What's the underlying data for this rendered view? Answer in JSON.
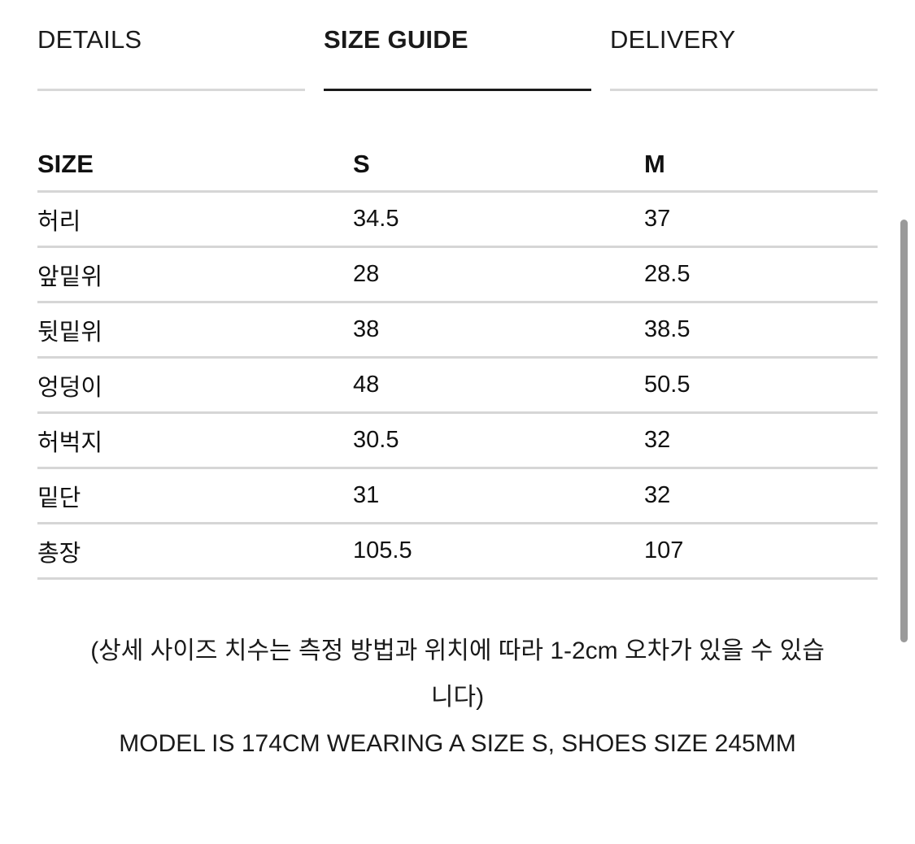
{
  "tabs": [
    {
      "label": "DETAILS",
      "active": false
    },
    {
      "label": "SIZE GUIDE",
      "active": true
    },
    {
      "label": "DELIVERY",
      "active": false
    }
  ],
  "table": {
    "headers": [
      "SIZE",
      "S",
      "M"
    ],
    "rows": [
      [
        "허리",
        "34.5",
        "37"
      ],
      [
        "앞밑위",
        "28",
        "28.5"
      ],
      [
        "뒷밑위",
        "38",
        "38.5"
      ],
      [
        "엉덩이",
        "48",
        "50.5"
      ],
      [
        "허벅지",
        "30.5",
        "32"
      ],
      [
        "밑단",
        "31",
        "32"
      ],
      [
        "총장",
        "105.5",
        "107"
      ]
    ]
  },
  "note": {
    "disclaimer": "(상세 사이즈 치수는 측정 방법과 위치에 따라 1-2cm 오차가 있을 수 있습니다)",
    "model": "MODEL IS 174CM WEARING A SIZE S, SHOES SIZE 245MM"
  }
}
